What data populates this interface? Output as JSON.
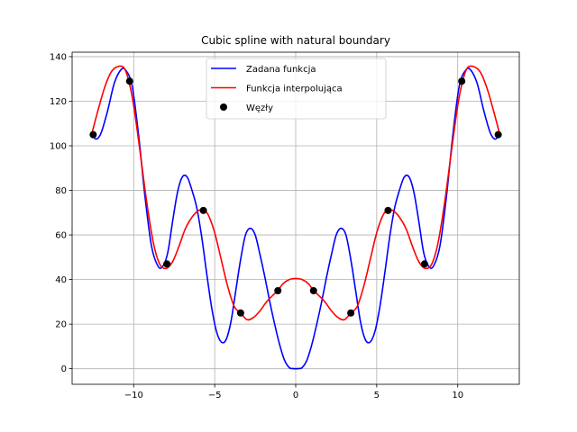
{
  "chart_data": {
    "type": "line",
    "title": "Cubic spline with natural boundary",
    "xlabel": "",
    "ylabel": "",
    "xlim": [
      -13.8,
      13.8
    ],
    "ylim": [
      -7,
      142
    ],
    "xticks": [
      -10,
      -5,
      0,
      5,
      10
    ],
    "xtick_labels": [
      "−10",
      "−5",
      "0",
      "5",
      "10"
    ],
    "yticks": [
      0,
      20,
      40,
      60,
      80,
      100,
      120,
      140
    ],
    "ytick_labels": [
      "0",
      "20",
      "40",
      "60",
      "80",
      "100",
      "120",
      "140"
    ],
    "grid": true,
    "legend_position": "top-center",
    "series": [
      {
        "name": "Zadana funkcja",
        "kind": "line",
        "color": "#0000ff",
        "x": [
          -12.6,
          -12.3,
          -12.0,
          -11.6,
          -11.2,
          -10.8,
          -10.5,
          -10.1,
          -9.7,
          -9.3,
          -8.9,
          -8.5,
          -8.2,
          -7.9,
          -7.6,
          -7.3,
          -7.0,
          -6.7,
          -6.4,
          -6.1,
          -5.8,
          -5.5,
          -5.2,
          -4.9,
          -4.6,
          -4.3,
          -4.0,
          -3.7,
          -3.4,
          -3.1,
          -2.8,
          -2.5,
          -2.2,
          -1.9,
          -1.6,
          -1.3,
          -1.0,
          -0.7,
          -0.4,
          -0.2,
          0.0,
          0.2,
          0.4,
          0.7,
          1.0,
          1.3,
          1.6,
          1.9,
          2.2,
          2.5,
          2.8,
          3.1,
          3.4,
          3.7,
          4.0,
          4.3,
          4.6,
          4.9,
          5.2,
          5.5,
          5.8,
          6.1,
          6.4,
          6.7,
          7.0,
          7.3,
          7.6,
          7.9,
          8.2,
          8.5,
          8.9,
          9.3,
          9.7,
          10.1,
          10.5,
          10.8,
          11.2,
          11.6,
          12.0,
          12.3,
          12.6
        ],
        "y": [
          105,
          103,
          106,
          116,
          128,
          134,
          134,
          127,
          105,
          77,
          55,
          46,
          46,
          52,
          66,
          79,
          86,
          86,
          80,
          72,
          59,
          43,
          28,
          17,
          12,
          13,
          21,
          35,
          49,
          60,
          63,
          60,
          51,
          41,
          30,
          20,
          11,
          4,
          0.5,
          0.1,
          0,
          0.1,
          0.5,
          4,
          11,
          20,
          30,
          41,
          51,
          60,
          63,
          60,
          49,
          35,
          21,
          13,
          12,
          17,
          28,
          43,
          59,
          72,
          80,
          86,
          86,
          79,
          66,
          52,
          46,
          46,
          55,
          77,
          105,
          127,
          134,
          134,
          128,
          116,
          106,
          103,
          105
        ]
      },
      {
        "name": "Funkcja interpolująca",
        "kind": "line",
        "color": "#ff0000",
        "x": [
          -12.6,
          -12.2,
          -11.8,
          -11.4,
          -11.0,
          -10.6,
          -10.3,
          -10.0,
          -9.6,
          -9.2,
          -8.8,
          -8.4,
          -8.0,
          -7.6,
          -7.2,
          -6.8,
          -6.4,
          -6.0,
          -5.7,
          -5.4,
          -5.0,
          -4.6,
          -4.2,
          -3.8,
          -3.4,
          -3.0,
          -2.6,
          -2.2,
          -1.8,
          -1.4,
          -1.1,
          -0.8,
          -0.4,
          0.0,
          0.4,
          0.8,
          1.1,
          1.4,
          1.8,
          2.2,
          2.6,
          3.0,
          3.4,
          3.8,
          4.2,
          4.6,
          5.0,
          5.4,
          5.7,
          6.0,
          6.4,
          6.8,
          7.2,
          7.6,
          8.0,
          8.4,
          8.8,
          9.2,
          9.6,
          10.0,
          10.3,
          10.6,
          11.0,
          11.4,
          11.8,
          12.2,
          12.6
        ],
        "y": [
          105,
          116,
          126,
          133,
          135.5,
          135,
          129,
          118,
          97,
          75,
          57,
          47,
          45,
          48,
          55,
          63,
          68,
          71,
          71,
          69,
          61,
          49,
          37,
          28,
          25,
          22,
          23,
          26,
          30,
          33,
          35,
          38,
          40,
          40.5,
          40,
          38,
          35,
          33,
          30,
          26,
          23,
          22,
          25,
          28,
          37,
          49,
          61,
          69,
          71,
          71,
          68,
          63,
          55,
          48,
          45,
          47,
          57,
          75,
          97,
          118,
          129,
          135,
          135.5,
          133,
          126,
          116,
          105
        ]
      },
      {
        "name": "Węzły",
        "kind": "scatter",
        "color": "#000000",
        "x": [
          -12.5,
          -10.25,
          -7.95,
          -5.7,
          -3.4,
          -1.1,
          1.1,
          3.4,
          5.7,
          7.95,
          10.25,
          12.5
        ],
        "y": [
          105,
          129,
          47,
          71,
          25,
          35,
          35,
          25,
          71,
          47,
          129,
          105
        ]
      }
    ]
  }
}
